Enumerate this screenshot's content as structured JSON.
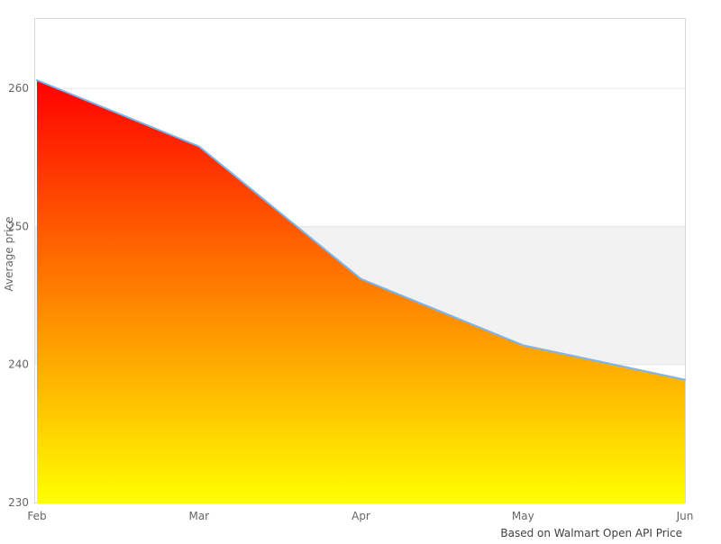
{
  "chart_data": {
    "type": "area",
    "x_categories": [
      "Feb",
      "Mar",
      "Apr",
      "May",
      "Jun"
    ],
    "series": [
      {
        "name": "Average price",
        "values": [
          260.6,
          255.8,
          246.2,
          241.4,
          238.9
        ],
        "line_color": "#7cb5ec",
        "fill_gradient_top": "#ff0000",
        "fill_gradient_bottom": "#ffff00"
      }
    ],
    "ylabel": "Average price",
    "xlabel": "",
    "title": "",
    "caption": "Based on Walmart Open API Price",
    "ylim": [
      230,
      265.1
    ],
    "yticks": [
      230,
      240,
      250,
      260
    ],
    "plot_band": {
      "from": 240,
      "to": 250,
      "color": "#f2f2f2"
    },
    "grid": {
      "gridline_color": "#e6e6e6",
      "border_color": "#d9d9d9",
      "band_behind_series": true
    },
    "text_colors": {
      "tick_labels": "#666666",
      "axis_title": "#666666",
      "caption": "#404040"
    },
    "legend": "none"
  }
}
